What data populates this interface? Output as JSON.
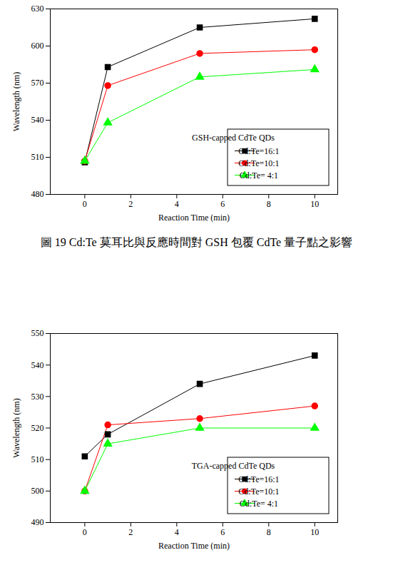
{
  "chart_data": [
    {
      "type": "line",
      "title": "GSH-capped CdTe QDs",
      "caption": "圖 19 Cd:Te 莫耳比與反應時間對 GSH 包覆 CdTe 量子點之影響",
      "x_label": "Reaction Time (min)",
      "y_label": "Wavelength (nm)",
      "x": [
        0,
        1,
        5,
        10
      ],
      "series": [
        {
          "name": "Cd:Te=16:1",
          "color": "#000000",
          "marker": "square",
          "values": [
            506,
            583,
            615,
            622
          ]
        },
        {
          "name": "Cd:Te=10:1",
          "color": "#ff0000",
          "marker": "circle",
          "values": [
            507,
            568,
            594,
            597
          ]
        },
        {
          "name": "Cd:Te= 4:1",
          "color": "#00ff00",
          "marker": "triangle",
          "values": [
            507,
            538,
            575,
            581
          ]
        }
      ],
      "xlim": [
        -1.5,
        11
      ],
      "xticks": [
        0,
        2,
        4,
        6,
        8,
        10
      ],
      "ylim": [
        480,
        630
      ],
      "yticks": [
        480,
        510,
        540,
        570,
        600,
        630
      ],
      "legend": "lower right",
      "grid": false
    },
    {
      "type": "line",
      "title": "TGA-capped CdTe QDs",
      "x_label": "Reaction Time (min)",
      "y_label": "Wavelength (nm)",
      "x": [
        0,
        1,
        5,
        10
      ],
      "series": [
        {
          "name": "Cd:Te=16:1",
          "color": "#000000",
          "marker": "square",
          "values": [
            511,
            518,
            534,
            543
          ]
        },
        {
          "name": "Cd:Te=10:1",
          "color": "#ff0000",
          "marker": "circle",
          "values": [
            500,
            521,
            523,
            527
          ]
        },
        {
          "name": "Cd:Te= 4:1",
          "color": "#00ff00",
          "marker": "triangle",
          "values": [
            500,
            515,
            520,
            520
          ]
        }
      ],
      "xlim": [
        -1.5,
        11
      ],
      "xticks": [
        0,
        2,
        4,
        6,
        8,
        10
      ],
      "ylim": [
        490,
        550
      ],
      "yticks": [
        490,
        500,
        510,
        520,
        530,
        540,
        550
      ],
      "legend": "lower right",
      "grid": false
    }
  ]
}
